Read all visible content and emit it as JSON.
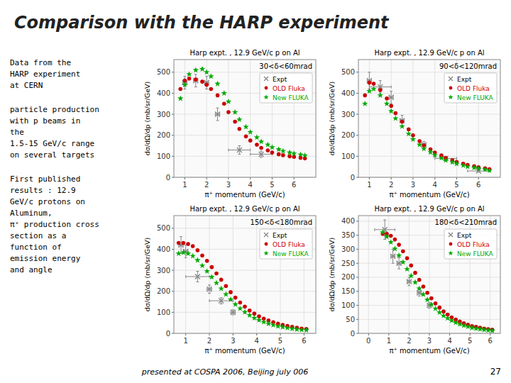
{
  "title": "Comparison with the HARP experiment",
  "annotations": [
    "Data from the\nHARP experiment\nat CERN",
    "particle production\nwith p beams in\nthe\n1.5-15 GeV/c range\non several targets",
    "First published\nresults : 12.9\nGeV/c protons on\nAluminum,\nπ⁺ production cross\nsection as a\nfunction of\nemission energy\nand angle",
    "presented at COSPA 2006, Beijing july 006",
    "27"
  ],
  "chart_data": [
    {
      "type": "scatter",
      "subtitle": "Harp expt. , 12.9 GeV/c p on Al",
      "annotations": [
        "30<δ<60mrad"
      ],
      "xlabel": "π⁺ momentum (GeV/c)",
      "ylabel": "dσ/dΩ/dp (mb/sr/GeV)",
      "xlim": [
        0.5,
        7
      ],
      "xticks": [
        1,
        2,
        3,
        4,
        5,
        6
      ],
      "ylim": [
        0,
        560
      ],
      "yticks": [
        0,
        100,
        200,
        300,
        400,
        500
      ],
      "legend": "upper right",
      "series": [
        {
          "name": "Expt",
          "color": "#888888",
          "marker": "x",
          "x": [
            1.0,
            1.5,
            2.0,
            2.5,
            3.5,
            4.5
          ],
          "values": [
            450,
            460,
            450,
            300,
            130,
            110
          ],
          "xerr": [
            0.1,
            0.1,
            0.1,
            0.1,
            0.5,
            0.5
          ],
          "yerr": [
            30,
            30,
            30,
            30,
            20,
            15
          ]
        },
        {
          "name": "OLD Fluka",
          "color": "#cc0000",
          "marker": "circle",
          "x": [
            0.8,
            1.0,
            1.2,
            1.5,
            1.8,
            2.0,
            2.2,
            2.5,
            2.8,
            3.0,
            3.3,
            3.5,
            3.8,
            4.0,
            4.3,
            4.5,
            4.8,
            5.0,
            5.3,
            5.5,
            5.8,
            6.0,
            6.3,
            6.5
          ],
          "values": [
            420,
            460,
            470,
            465,
            455,
            440,
            420,
            390,
            350,
            310,
            265,
            230,
            195,
            175,
            155,
            140,
            128,
            118,
            110,
            105,
            100,
            97,
            93,
            90
          ]
        },
        {
          "name": "New FLUKA",
          "color": "#00aa00",
          "marker": "star",
          "x": [
            0.8,
            1.0,
            1.2,
            1.5,
            1.8,
            2.0,
            2.2,
            2.5,
            2.8,
            3.0,
            3.3,
            3.5,
            3.8,
            4.0,
            4.3,
            4.5,
            4.8,
            5.0,
            5.3,
            5.5,
            5.8,
            6.0,
            6.3,
            6.5
          ],
          "values": [
            375,
            440,
            490,
            510,
            515,
            500,
            480,
            445,
            400,
            360,
            310,
            275,
            240,
            215,
            190,
            170,
            155,
            143,
            133,
            125,
            118,
            113,
            108,
            104
          ]
        }
      ]
    },
    {
      "type": "scatter",
      "subtitle": "Harp expt. , 12.9 GeV/c p on Al",
      "annotations": [
        "90<δ<120mrad"
      ],
      "xlabel": "π⁺ momentum (GeV/c)",
      "ylabel": "dσ/dΩ/dp (mb/sr/GeV)",
      "xlim": [
        0.5,
        7
      ],
      "xticks": [
        1,
        2,
        3,
        4,
        5,
        6
      ],
      "ylim": [
        0,
        560
      ],
      "yticks": [
        0,
        100,
        200,
        300,
        400,
        500
      ],
      "legend": "upper right",
      "series": [
        {
          "name": "Expt",
          "color": "#888888",
          "marker": "x",
          "x": [
            1.0,
            1.5,
            2.0,
            2.5,
            3.5,
            4.5,
            6.0
          ],
          "values": [
            460,
            430,
            380,
            270,
            155,
            90,
            30
          ],
          "xerr": [
            0.1,
            0.5,
            0.1,
            0.1,
            0.1,
            0.5,
            0.5
          ],
          "yerr": [
            40,
            30,
            30,
            25,
            15,
            10,
            5
          ]
        },
        {
          "name": "OLD Fluka",
          "color": "#cc0000",
          "marker": "circle",
          "x": [
            0.8,
            1.0,
            1.2,
            1.5,
            1.8,
            2.0,
            2.2,
            2.5,
            2.8,
            3.0,
            3.3,
            3.5,
            3.8,
            4.0,
            4.3,
            4.5,
            4.8,
            5.0,
            5.3,
            5.5,
            5.8,
            6.0,
            6.3,
            6.5
          ],
          "values": [
            390,
            450,
            445,
            415,
            375,
            340,
            305,
            265,
            228,
            200,
            172,
            152,
            133,
            118,
            104,
            92,
            82,
            73,
            65,
            59,
            53,
            48,
            43,
            39
          ]
        },
        {
          "name": "New FLUKA",
          "color": "#00aa00",
          "marker": "star",
          "x": [
            0.8,
            1.0,
            1.2,
            1.5,
            1.8,
            2.0,
            2.2,
            2.5,
            2.8,
            3.0,
            3.3,
            3.5,
            3.8,
            4.0,
            4.3,
            4.5,
            4.8,
            5.0,
            5.3,
            5.5,
            5.8,
            6.0,
            6.3,
            6.5
          ],
          "values": [
            350,
            410,
            420,
            390,
            350,
            315,
            280,
            242,
            207,
            181,
            155,
            136,
            119,
            105,
            92,
            81,
            72,
            64,
            57,
            51,
            46,
            41,
            37,
            33
          ]
        }
      ]
    },
    {
      "type": "scatter",
      "subtitle": "Harp expt. , 12.9 GeV/c p on Al",
      "annotations": [
        "150<δ<180mrad"
      ],
      "xlabel": "π⁺ momentum (GeV/c)",
      "ylabel": "dσ/dΩ/dp (mb/sr/GeV)",
      "xlim": [
        0.5,
        6.5
      ],
      "xticks": [
        1,
        2,
        3,
        4,
        5,
        6
      ],
      "ylim": [
        0,
        560
      ],
      "yticks": [
        0,
        100,
        200,
        300,
        400,
        500
      ],
      "legend": "upper right",
      "series": [
        {
          "name": "Expt",
          "color": "#888888",
          "marker": "x",
          "x": [
            0.8,
            1.0,
            1.5,
            2.0,
            2.5,
            3.0
          ],
          "values": [
            420,
            390,
            270,
            210,
            155,
            100
          ],
          "xerr": [
            0.1,
            0.1,
            0.5,
            0.1,
            0.5,
            0.1
          ],
          "yerr": [
            40,
            30,
            25,
            20,
            15,
            12
          ]
        },
        {
          "name": "OLD Fluka",
          "color": "#cc0000",
          "marker": "circle",
          "x": [
            0.7,
            0.9,
            1.1,
            1.3,
            1.5,
            1.7,
            1.9,
            2.1,
            2.3,
            2.5,
            2.7,
            2.9,
            3.1,
            3.3,
            3.5,
            3.7,
            3.9,
            4.1,
            4.3,
            4.5,
            4.7,
            4.9,
            5.1,
            5.3,
            5.5,
            5.7,
            5.9,
            6.1
          ],
          "values": [
            430,
            430,
            425,
            415,
            395,
            370,
            345,
            315,
            285,
            255,
            225,
            196,
            170,
            147,
            127,
            109,
            94,
            81,
            70,
            61,
            53,
            46,
            40,
            35,
            31,
            27,
            23,
            21
          ]
        },
        {
          "name": "New FLUKA",
          "color": "#00aa00",
          "marker": "star",
          "x": [
            0.7,
            0.9,
            1.1,
            1.3,
            1.5,
            1.7,
            1.9,
            2.1,
            2.3,
            2.5,
            2.7,
            2.9,
            3.1,
            3.3,
            3.5,
            3.7,
            3.9,
            4.1,
            4.3,
            4.5,
            4.7,
            4.9,
            5.1,
            5.3,
            5.5,
            5.7,
            5.9,
            6.1
          ],
          "values": [
            380,
            385,
            380,
            368,
            348,
            322,
            295,
            268,
            240,
            213,
            186,
            161,
            138,
            118,
            101,
            86,
            73,
            63,
            54,
            46,
            40,
            34,
            30,
            26,
            22,
            19,
            17,
            15
          ]
        }
      ]
    },
    {
      "type": "scatter",
      "subtitle": "Harp expt. , 12.9 GeV/c p on Al",
      "annotations": [
        "180<δ<210mrad"
      ],
      "xlabel": "π⁺ momentum (GeV/c)",
      "ylabel": "dσ/dΩ/dp (mb/sr/GeV)",
      "xlim": [
        -0.5,
        6.5
      ],
      "xticks": [
        0,
        1,
        2,
        3,
        4,
        5,
        6
      ],
      "ylim": [
        0,
        420
      ],
      "yticks": [
        0,
        50,
        100,
        150,
        200,
        250,
        300,
        350,
        400
      ],
      "legend": "upper right",
      "series": [
        {
          "name": "Expt",
          "color": "#888888",
          "marker": "x",
          "x": [
            0.8,
            1.2,
            1.5,
            2.0,
            2.5,
            3.0
          ],
          "values": [
            370,
            275,
            250,
            185,
            145,
            100
          ],
          "xerr": [
            0.5,
            0.1,
            0.1,
            0.1,
            0.1,
            0.1
          ],
          "yerr": [
            35,
            25,
            20,
            15,
            12,
            10
          ]
        },
        {
          "name": "OLD Fluka",
          "color": "#cc0000",
          "marker": "circle",
          "x": [
            0.7,
            0.9,
            1.1,
            1.3,
            1.5,
            1.7,
            1.9,
            2.1,
            2.3,
            2.5,
            2.7,
            2.9,
            3.1,
            3.3,
            3.5,
            3.7,
            3.9,
            4.1,
            4.3,
            4.5,
            4.7,
            4.9,
            5.1,
            5.3,
            5.5,
            5.7,
            5.9,
            6.1
          ],
          "values": [
            355,
            355,
            348,
            335,
            316,
            293,
            268,
            242,
            216,
            191,
            167,
            145,
            125,
            107,
            92,
            78,
            67,
            57,
            49,
            42,
            36,
            31,
            26,
            23,
            20,
            17,
            15,
            13
          ]
        },
        {
          "name": "New FLUKA",
          "color": "#00aa00",
          "marker": "star",
          "x": [
            0.7,
            0.9,
            1.1,
            1.3,
            1.5,
            1.7,
            1.9,
            2.1,
            2.3,
            2.5,
            2.7,
            2.9,
            3.1,
            3.3,
            3.5,
            3.7,
            3.9,
            4.1,
            4.3,
            4.5,
            4.7,
            4.9,
            5.1,
            5.3,
            5.5,
            5.7,
            5.9,
            6.1
          ],
          "values": [
            360,
            345,
            325,
            302,
            278,
            254,
            229,
            205,
            182,
            160,
            139,
            120,
            103,
            88,
            75,
            63,
            54,
            46,
            39,
            33,
            28,
            24,
            20,
            17,
            15,
            13,
            11,
            9
          ]
        }
      ]
    }
  ]
}
